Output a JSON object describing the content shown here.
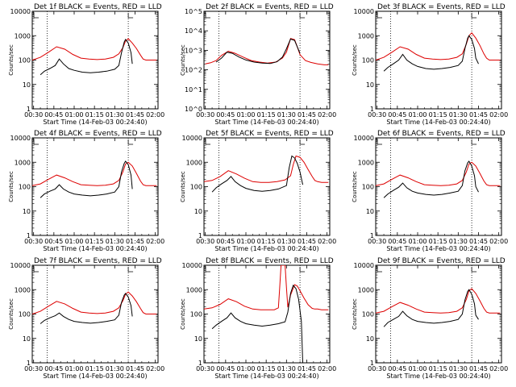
{
  "panel_titles": [
    "Det 1f BLACK = Events, RED = LLD",
    "Det 2f BLACK = Events, RED = LLD",
    "Det 3f BLACK = Events, RED = LLD",
    "Det 4f BLACK = Events, RED = LLD",
    "Det 5f BLACK = Events, RED = LLD",
    "Det 6f BLACK = Events, RED = LLD",
    "Det 7f BLACK = Events, RED = LLD",
    "Det 8f BLACK = Events, RED = LLD",
    "Det 9f BLACK = Events, RED = LLD"
  ],
  "xlabel": "Start Time (14-Feb-03 00:24:40)",
  "ylabel": "Counts/sec",
  "colors": {
    "events": "#000000",
    "lld": "#dd0000",
    "axes": "#000000"
  },
  "chart_data": {
    "type": "line",
    "layout": "3x3 grid",
    "x_unit": "time of day (HH:MM)",
    "x_range": [
      "00:30",
      "02:00"
    ],
    "x_ticks": [
      "00:30",
      "00:45",
      "01:00",
      "01:15",
      "01:30",
      "01:45",
      "02:00"
    ],
    "y_scale": "log",
    "y_ticks_default": [
      "1",
      "10",
      "100",
      "1000",
      "10000"
    ],
    "y_ticks_det2": [
      "10^0",
      "10^1",
      "10^2",
      "10^3",
      "10^4",
      "10^5"
    ],
    "vertical_dotted_lines": [
      "00:40",
      "01:40"
    ],
    "series_legend": {
      "BLACK": "Events",
      "RED": "LLD"
    },
    "panels": [
      {
        "detector": "1f",
        "ylim": [
          1,
          10000
        ],
        "lld": {
          "x": [
            "00:29",
            "00:35",
            "00:41",
            "00:47",
            "00:53",
            "00:59",
            "01:05",
            "01:11",
            "01:17",
            "01:23",
            "01:29",
            "01:33",
            "01:36",
            "01:38",
            "01:40",
            "01:43",
            "01:46",
            "01:49",
            "01:51",
            "01:53",
            "01:56",
            "01:59",
            "02:01"
          ],
          "y": [
            100,
            130,
            210,
            350,
            280,
            170,
            120,
            110,
            105,
            110,
            130,
            180,
            320,
            600,
            750,
            500,
            300,
            160,
            110,
            100,
            100,
            100,
            100
          ]
        },
        "events": {
          "x": [
            "00:35",
            "00:38",
            "00:42",
            "00:46",
            "00:49",
            "00:52",
            "00:56",
            "01:00",
            "01:06",
            "01:12",
            "01:18",
            "01:24",
            "01:30",
            "01:33",
            "01:35",
            "01:37",
            "01:38",
            "01:40",
            "01:42",
            "01:43"
          ],
          "y": [
            25,
            35,
            45,
            60,
            110,
            70,
            45,
            38,
            32,
            30,
            32,
            35,
            42,
            60,
            200,
            550,
            700,
            500,
            200,
            70
          ]
        }
      },
      {
        "detector": "2f",
        "ylim": [
          1,
          100000
        ],
        "lld": {
          "x": [
            "00:30",
            "00:34",
            "00:38",
            "00:42",
            "00:47",
            "00:52",
            "00:58",
            "01:04",
            "01:10",
            "01:16",
            "01:22",
            "01:27",
            "01:30",
            "01:33",
            "01:36",
            "01:38",
            "01:40",
            "01:44",
            "01:48",
            "01:53",
            "01:58",
            "02:01"
          ],
          "y": [
            200,
            230,
            300,
            550,
            900,
            700,
            450,
            300,
            250,
            220,
            250,
            400,
            800,
            4000,
            3500,
            1500,
            600,
            300,
            240,
            200,
            180,
            180
          ]
        },
        "events": {
          "x": [
            "00:38",
            "00:42",
            "00:46",
            "00:50",
            "00:55",
            "01:00",
            "01:06",
            "01:12",
            "01:18",
            "01:23",
            "01:27",
            "01:30",
            "01:33",
            "01:36",
            "01:38",
            "01:40"
          ],
          "y": [
            250,
            400,
            800,
            700,
            450,
            320,
            250,
            220,
            210,
            260,
            450,
            1200,
            3800,
            3200,
            1500,
            700
          ]
        }
      },
      {
        "detector": "3f",
        "ylim": [
          1,
          10000
        ],
        "lld": {
          "x": [
            "00:29",
            "00:35",
            "00:41",
            "00:47",
            "00:53",
            "00:59",
            "01:05",
            "01:11",
            "01:17",
            "01:23",
            "01:29",
            "01:33",
            "01:36",
            "01:38",
            "01:40",
            "01:43",
            "01:46",
            "01:49",
            "01:51",
            "01:53",
            "01:56",
            "01:59",
            "02:01"
          ],
          "y": [
            100,
            130,
            210,
            350,
            280,
            170,
            120,
            110,
            105,
            110,
            130,
            180,
            450,
            1000,
            1300,
            800,
            400,
            180,
            120,
            100,
            100,
            100,
            100
          ]
        },
        "events": {
          "x": [
            "00:35",
            "00:38",
            "00:42",
            "00:46",
            "00:49",
            "00:52",
            "00:56",
            "01:00",
            "01:06",
            "01:12",
            "01:18",
            "01:24",
            "01:30",
            "01:33",
            "01:35",
            "01:37",
            "01:38",
            "01:40",
            "01:42",
            "01:43",
            "01:45"
          ],
          "y": [
            35,
            50,
            70,
            100,
            170,
            100,
            70,
            55,
            45,
            42,
            45,
            50,
            60,
            90,
            300,
            800,
            1000,
            700,
            300,
            120,
            70
          ]
        }
      },
      {
        "detector": "4f",
        "ylim": [
          1,
          10000
        ],
        "lld": {
          "x": [
            "00:29",
            "00:35",
            "00:41",
            "00:47",
            "00:53",
            "00:59",
            "01:05",
            "01:11",
            "01:17",
            "01:23",
            "01:29",
            "01:33",
            "01:36",
            "01:38",
            "01:40",
            "01:43",
            "01:46",
            "01:49",
            "01:51",
            "01:53",
            "01:56",
            "01:59",
            "02:01"
          ],
          "y": [
            110,
            130,
            200,
            300,
            230,
            160,
            120,
            115,
            110,
            115,
            130,
            180,
            400,
            850,
            1000,
            700,
            350,
            170,
            120,
            110,
            110,
            110,
            110
          ]
        },
        "events": {
          "x": [
            "00:35",
            "00:38",
            "00:42",
            "00:46",
            "00:49",
            "00:52",
            "00:56",
            "01:00",
            "01:06",
            "01:12",
            "01:18",
            "01:24",
            "01:30",
            "01:33",
            "01:35",
            "01:37",
            "01:38",
            "01:40",
            "01:42",
            "01:43"
          ],
          "y": [
            35,
            50,
            65,
            80,
            120,
            80,
            60,
            50,
            45,
            42,
            45,
            50,
            60,
            100,
            400,
            900,
            1100,
            800,
            300,
            80
          ]
        }
      },
      {
        "detector": "5f",
        "ylim": [
          1,
          10000
        ],
        "lld": {
          "x": [
            "00:29",
            "00:35",
            "00:41",
            "00:47",
            "00:53",
            "00:59",
            "01:05",
            "01:11",
            "01:17",
            "01:23",
            "01:29",
            "01:33",
            "01:35",
            "01:37",
            "01:40",
            "01:43",
            "01:46",
            "01:49",
            "01:51",
            "01:53",
            "01:56",
            "01:59",
            "02:01"
          ],
          "y": [
            160,
            180,
            260,
            450,
            330,
            220,
            160,
            150,
            150,
            160,
            190,
            280,
            800,
            1800,
            1600,
            1000,
            500,
            260,
            180,
            160,
            150,
            150,
            150
          ]
        },
        "events": {
          "x": [
            "00:35",
            "00:38",
            "00:42",
            "00:46",
            "00:49",
            "00:52",
            "00:56",
            "01:00",
            "01:06",
            "01:12",
            "01:18",
            "01:24",
            "01:30",
            "01:32",
            "01:34",
            "01:36",
            "01:38",
            "01:40",
            "01:42"
          ],
          "y": [
            60,
            90,
            130,
            180,
            260,
            160,
            110,
            85,
            70,
            65,
            70,
            80,
            110,
            600,
            1800,
            1500,
            900,
            400,
            120
          ]
        }
      },
      {
        "detector": "6f",
        "ylim": [
          1,
          10000
        ],
        "lld": {
          "x": [
            "00:29",
            "00:35",
            "00:41",
            "00:47",
            "00:53",
            "00:59",
            "01:05",
            "01:11",
            "01:17",
            "01:23",
            "01:29",
            "01:33",
            "01:36",
            "01:38",
            "01:40",
            "01:43",
            "01:46",
            "01:49",
            "01:51",
            "01:53",
            "01:56",
            "01:59",
            "02:01"
          ],
          "y": [
            110,
            130,
            200,
            300,
            230,
            160,
            120,
            115,
            110,
            115,
            130,
            180,
            400,
            850,
            1000,
            700,
            350,
            170,
            120,
            110,
            110,
            110,
            110
          ]
        },
        "events": {
          "x": [
            "00:35",
            "00:38",
            "00:42",
            "00:46",
            "00:49",
            "00:52",
            "00:56",
            "01:00",
            "01:06",
            "01:12",
            "01:18",
            "01:24",
            "01:30",
            "01:33",
            "01:35",
            "01:37",
            "01:38",
            "01:40",
            "01:42",
            "01:43",
            "01:45"
          ],
          "y": [
            35,
            50,
            70,
            95,
            140,
            90,
            65,
            55,
            48,
            45,
            48,
            55,
            65,
            110,
            450,
            950,
            1100,
            700,
            280,
            100,
            60
          ]
        }
      },
      {
        "detector": "7f",
        "ylim": [
          1,
          10000
        ],
        "lld": {
          "x": [
            "00:29",
            "00:35",
            "00:41",
            "00:47",
            "00:53",
            "00:59",
            "01:05",
            "01:11",
            "01:17",
            "01:23",
            "01:29",
            "01:33",
            "01:36",
            "01:38",
            "01:40",
            "01:43",
            "01:46",
            "01:49",
            "01:51",
            "01:53",
            "01:56",
            "01:59",
            "02:01"
          ],
          "y": [
            100,
            130,
            210,
            330,
            260,
            170,
            120,
            110,
            105,
            110,
            130,
            180,
            350,
            650,
            800,
            550,
            320,
            170,
            115,
            100,
            100,
            100,
            100
          ]
        },
        "events": {
          "x": [
            "00:35",
            "00:38",
            "00:42",
            "00:46",
            "00:49",
            "00:52",
            "00:56",
            "01:00",
            "01:06",
            "01:12",
            "01:18",
            "01:24",
            "01:30",
            "01:33",
            "01:35",
            "01:37",
            "01:38",
            "01:40",
            "01:42",
            "01:43"
          ],
          "y": [
            40,
            55,
            70,
            85,
            110,
            80,
            60,
            50,
            45,
            42,
            45,
            50,
            58,
            90,
            300,
            600,
            700,
            500,
            220,
            80
          ]
        }
      },
      {
        "detector": "8f",
        "ylim": [
          1,
          10000
        ],
        "lld": {
          "x": [
            "00:29",
            "00:35",
            "00:41",
            "00:47",
            "00:53",
            "00:59",
            "01:05",
            "01:11",
            "01:17",
            "01:21",
            "01:24",
            "01:25",
            "01:26",
            "01:27",
            "01:28",
            "01:29",
            "01:30",
            "01:31",
            "01:33",
            "01:36",
            "01:38",
            "01:40",
            "01:43",
            "01:46",
            "01:49",
            "01:51",
            "01:53",
            "01:56",
            "01:59",
            "02:01"
          ],
          "y": [
            160,
            180,
            250,
            420,
            320,
            210,
            160,
            150,
            150,
            150,
            180,
            1200,
            10000,
            10000,
            10000,
            10000,
            1200,
            190,
            600,
            1600,
            1400,
            900,
            450,
            240,
            170,
            160,
            160,
            150,
            150,
            150
          ]
        },
        "events": {
          "x": [
            "00:35",
            "00:38",
            "00:42",
            "00:46",
            "00:49",
            "00:52",
            "00:56",
            "01:00",
            "01:06",
            "01:12",
            "01:18",
            "01:24",
            "01:29",
            "01:31",
            "01:33",
            "01:35",
            "01:37",
            "01:39",
            "01:41",
            "01:42"
          ],
          "y": [
            25,
            35,
            50,
            70,
            110,
            70,
            50,
            40,
            35,
            32,
            35,
            40,
            48,
            120,
            700,
            1500,
            1100,
            400,
            50,
            1
          ]
        }
      },
      {
        "detector": "9f",
        "ylim": [
          1,
          10000
        ],
        "lld": {
          "x": [
            "00:29",
            "00:35",
            "00:41",
            "00:47",
            "00:53",
            "00:59",
            "01:05",
            "01:11",
            "01:17",
            "01:23",
            "01:29",
            "01:33",
            "01:36",
            "01:38",
            "01:40",
            "01:43",
            "01:46",
            "01:49",
            "01:51",
            "01:53",
            "01:56",
            "01:59",
            "02:01"
          ],
          "y": [
            110,
            130,
            200,
            300,
            230,
            160,
            120,
            115,
            110,
            115,
            130,
            180,
            400,
            900,
            1100,
            700,
            350,
            170,
            120,
            110,
            110,
            110,
            110
          ]
        },
        "events": {
          "x": [
            "00:35",
            "00:38",
            "00:42",
            "00:46",
            "00:49",
            "00:52",
            "00:56",
            "01:00",
            "01:06",
            "01:12",
            "01:18",
            "01:24",
            "01:30",
            "01:33",
            "01:35",
            "01:37",
            "01:38",
            "01:40",
            "01:42",
            "01:43",
            "01:45"
          ],
          "y": [
            30,
            45,
            60,
            80,
            130,
            85,
            60,
            50,
            45,
            42,
            45,
            50,
            60,
            100,
            380,
            850,
            1000,
            650,
            260,
            90,
            60
          ]
        }
      }
    ]
  }
}
